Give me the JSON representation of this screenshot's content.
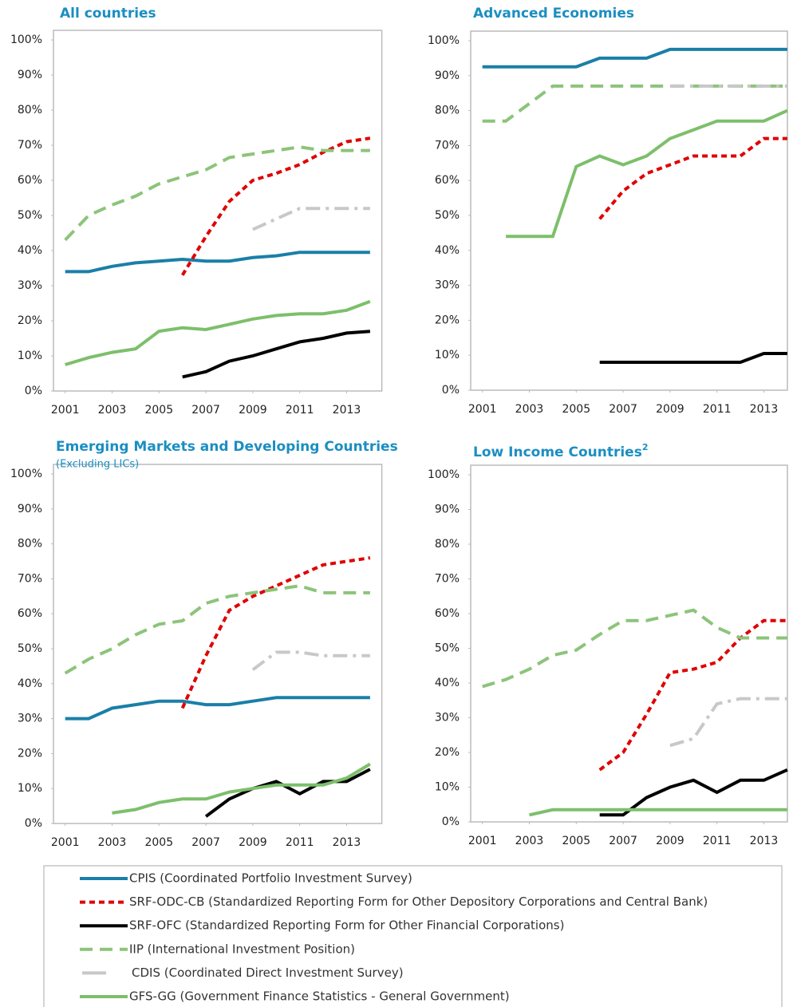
{
  "legend": [
    {
      "name": "CPIS (Coordinated Portfolio Investment  Survey)",
      "color": "#1a7fa8",
      "style": "solid"
    },
    {
      "name": "SRF-ODC-CB (Standardized Reporting Form for Other Depository Corporations and Central Bank)",
      "color": "#e00000",
      "style": "dashed"
    },
    {
      "name": "SRF-OFC (Standardized Reporting Form for Other Financial Corporations)",
      "color": "#000000",
      "style": "solid"
    },
    {
      "name": "IIP (International  Investment  Position)",
      "color": "#8cc47a",
      "style": "long-dashed"
    },
    {
      "name": "CDIS (Coordinated Direct Investment  Survey)",
      "color": "#c8c8c8",
      "style": "dash-dot"
    },
    {
      "name": "GFS-GG (Government Finance Statistics  - General Government)",
      "color": "#7dbf6b",
      "style": "solid"
    }
  ],
  "chart_data": [
    {
      "type": "line",
      "title": "All countries",
      "x": [
        2001,
        2002,
        2003,
        2004,
        2005,
        2006,
        2007,
        2008,
        2009,
        2010,
        2011,
        2012,
        2013,
        2014
      ],
      "xlim": [
        2000.5,
        2014.5
      ],
      "xticks": [
        2001,
        2003,
        2005,
        2007,
        2009,
        2011,
        2013
      ],
      "ylim": [
        0,
        100
      ],
      "yticks": [
        {
          "value": 0,
          "label": "0%"
        },
        {
          "value": 10,
          "label": "10%"
        },
        {
          "value": 20,
          "label": "20%"
        },
        {
          "value": 30,
          "label": "30%"
        },
        {
          "value": 40,
          "label": "40%"
        },
        {
          "value": 50,
          "label": "50%"
        },
        {
          "value": 60,
          "label": "60%"
        },
        {
          "value": 70,
          "label": "70%"
        },
        {
          "value": 80,
          "label": "80%"
        },
        {
          "value": 90,
          "label": "90%"
        },
        {
          "value": 100,
          "label": "100%"
        }
      ],
      "series": [
        {
          "values": [
            34,
            34,
            35.5,
            36.5,
            37,
            37.5,
            37,
            37,
            38,
            38.5,
            39.5,
            39.5,
            39.5,
            39.5
          ]
        },
        {
          "values": [
            null,
            null,
            null,
            null,
            null,
            33,
            44,
            54,
            60,
            62,
            64.5,
            68,
            71,
            72
          ]
        },
        {
          "values": [
            null,
            null,
            null,
            null,
            null,
            4,
            5.5,
            8.5,
            10,
            12,
            14,
            15,
            16.5,
            17
          ]
        },
        {
          "values": [
            43,
            50,
            53,
            55.5,
            59,
            61,
            63,
            66.5,
            67.5,
            68.5,
            69.5,
            68.5,
            68.5,
            68.5
          ]
        },
        {
          "values": [
            null,
            null,
            null,
            null,
            null,
            null,
            null,
            null,
            46,
            49,
            52,
            52,
            52,
            52
          ]
        },
        {
          "values": [
            7.5,
            9.5,
            11,
            12,
            17,
            18,
            17.5,
            19,
            20.5,
            21.5,
            22,
            22,
            23,
            25.5
          ]
        }
      ]
    },
    {
      "type": "line",
      "title": "Advanced  Economies",
      "x": [
        2001,
        2002,
        2003,
        2004,
        2005,
        2006,
        2007,
        2008,
        2009,
        2010,
        2011,
        2012,
        2013,
        2014
      ],
      "xlim": [
        2000.5,
        2014.5
      ],
      "xticks": [
        2001,
        2003,
        2005,
        2007,
        2009,
        2011,
        2013
      ],
      "ylim": [
        0,
        100
      ],
      "yticks": [
        {
          "value": 0,
          "label": "0%"
        },
        {
          "value": 10,
          "label": "10%"
        },
        {
          "value": 20,
          "label": "20%"
        },
        {
          "value": 30,
          "label": "30%"
        },
        {
          "value": 40,
          "label": "40%"
        },
        {
          "value": 50,
          "label": "50%"
        },
        {
          "value": 60,
          "label": "60%"
        },
        {
          "value": 70,
          "label": "70%"
        },
        {
          "value": 80,
          "label": "80%"
        },
        {
          "value": 90,
          "label": "90%"
        },
        {
          "value": 100,
          "label": "100%"
        }
      ],
      "series": [
        {
          "values": [
            92.5,
            92.5,
            92.5,
            92.5,
            92.5,
            95,
            95,
            95,
            97.5,
            97.5,
            97.5,
            97.5,
            97.5,
            97.5
          ]
        },
        {
          "values": [
            null,
            null,
            null,
            null,
            null,
            49,
            57,
            62,
            64.5,
            67,
            67,
            67,
            72,
            72
          ]
        },
        {
          "values": [
            null,
            null,
            null,
            null,
            null,
            8,
            8,
            8,
            8,
            8,
            8,
            8,
            10.5,
            10.5
          ]
        },
        {
          "values": [
            77,
            77,
            82,
            87,
            87,
            87,
            87,
            87,
            87,
            87,
            87,
            87,
            87,
            87
          ]
        },
        {
          "values": [
            null,
            null,
            null,
            null,
            null,
            null,
            null,
            null,
            87,
            87,
            87,
            87,
            87,
            87
          ]
        },
        {
          "values": [
            null,
            44,
            44,
            44,
            64,
            67,
            64.5,
            67,
            72,
            74.5,
            77,
            77,
            77,
            80
          ]
        }
      ]
    },
    {
      "type": "line",
      "title": "Emerging Markets and Developing Countries",
      "subtitle": "(Excluding LICs)",
      "x": [
        2001,
        2002,
        2003,
        2004,
        2005,
        2006,
        2007,
        2008,
        2009,
        2010,
        2011,
        2012,
        2013,
        2014
      ],
      "xlim": [
        2000.5,
        2014.5
      ],
      "xticks": [
        2001,
        2003,
        2005,
        2007,
        2009,
        2011,
        2013
      ],
      "ylim": [
        0,
        100
      ],
      "yticks": [
        {
          "value": 0,
          "label": "0%"
        },
        {
          "value": 10,
          "label": "10%"
        },
        {
          "value": 20,
          "label": "20%"
        },
        {
          "value": 30,
          "label": "30%"
        },
        {
          "value": 40,
          "label": "40%"
        },
        {
          "value": 50,
          "label": "50%"
        },
        {
          "value": 60,
          "label": "60%"
        },
        {
          "value": 70,
          "label": "70%"
        },
        {
          "value": 80,
          "label": "80%"
        },
        {
          "value": 90,
          "label": "90%"
        },
        {
          "value": 100,
          "label": "100%"
        }
      ],
      "series": [
        {
          "values": [
            30,
            30,
            33,
            34,
            35,
            35,
            34,
            34,
            35,
            36,
            36,
            36,
            36,
            36
          ]
        },
        {
          "values": [
            null,
            null,
            null,
            null,
            null,
            33,
            48,
            61,
            65,
            68,
            71,
            74,
            75,
            76
          ]
        },
        {
          "values": [
            null,
            null,
            null,
            null,
            null,
            null,
            2,
            7,
            10,
            12,
            8.5,
            12,
            12,
            15.5
          ]
        },
        {
          "values": [
            43,
            47,
            50,
            54,
            57,
            58,
            63,
            65,
            66,
            67,
            68,
            66,
            66,
            66
          ]
        },
        {
          "values": [
            null,
            null,
            null,
            null,
            null,
            null,
            null,
            null,
            44,
            49,
            49,
            48,
            48,
            48
          ]
        },
        {
          "values": [
            null,
            null,
            3,
            4,
            6,
            7,
            7,
            9,
            10,
            11,
            11,
            11,
            13,
            17
          ]
        }
      ]
    },
    {
      "type": "line",
      "title": "Low Income  Countries",
      "title_superscript": "2",
      "x": [
        2001,
        2002,
        2003,
        2004,
        2005,
        2006,
        2007,
        2008,
        2009,
        2010,
        2011,
        2012,
        2013,
        2014
      ],
      "xlim": [
        2000.5,
        2014.5
      ],
      "xticks": [
        2001,
        2003,
        2005,
        2007,
        2009,
        2011,
        2013
      ],
      "ylim": [
        0,
        100
      ],
      "yticks": [
        {
          "value": 0,
          "label": "0%"
        },
        {
          "value": 10,
          "label": "10%"
        },
        {
          "value": 20,
          "label": "20%"
        },
        {
          "value": 30,
          "label": "30%"
        },
        {
          "value": 40,
          "label": "40%"
        },
        {
          "value": 50,
          "label": "50%"
        },
        {
          "value": 60,
          "label": "60%"
        },
        {
          "value": 70,
          "label": "70%"
        },
        {
          "value": 80,
          "label": "80%"
        },
        {
          "value": 90,
          "label": "90%"
        },
        {
          "value": 100,
          "label": "100%"
        }
      ],
      "series": [
        {
          "values": [
            null,
            null,
            null,
            null,
            null,
            null,
            null,
            null,
            null,
            null,
            null,
            null,
            null,
            null
          ]
        },
        {
          "values": [
            null,
            null,
            null,
            null,
            null,
            15,
            20,
            31,
            43,
            44,
            46,
            53,
            58,
            58
          ]
        },
        {
          "values": [
            null,
            null,
            null,
            null,
            null,
            2,
            2,
            7,
            10,
            12,
            8.5,
            12,
            12,
            15
          ]
        },
        {
          "values": [
            39,
            41,
            44,
            48,
            49.5,
            54,
            58,
            58,
            59.5,
            61,
            56,
            53,
            53,
            53
          ]
        },
        {
          "values": [
            null,
            null,
            null,
            null,
            null,
            null,
            null,
            null,
            22,
            24,
            34,
            35.5,
            35.5,
            35.5
          ]
        },
        {
          "values": [
            null,
            null,
            2,
            3.5,
            3.5,
            3.5,
            3.5,
            3.5,
            3.5,
            3.5,
            3.5,
            3.5,
            3.5,
            3.5
          ]
        }
      ]
    }
  ]
}
